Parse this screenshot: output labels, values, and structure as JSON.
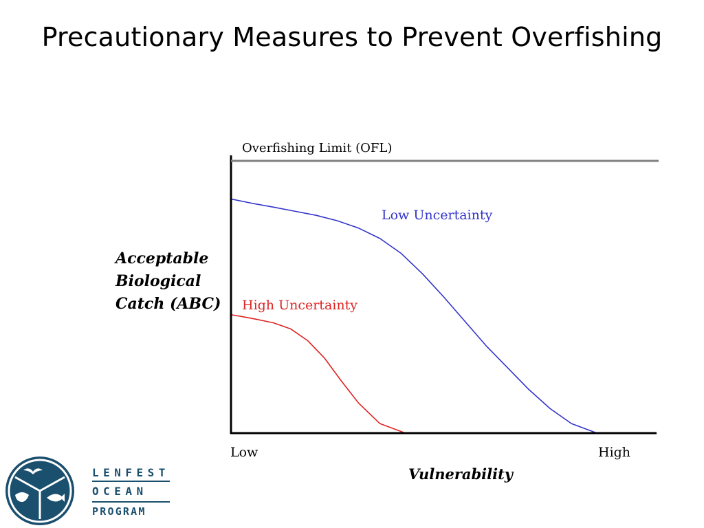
{
  "slide": {
    "title": "Precautionary Measures to Prevent Overfishing"
  },
  "chart_data": {
    "type": "line",
    "title": "",
    "xlabel": "Vulnerability",
    "ylabel_lines": [
      "Acceptable",
      "Biological",
      "Catch (ABC)"
    ],
    "x_ticks": [
      "Low",
      "High"
    ],
    "xlim": [
      0,
      1
    ],
    "ylim": [
      0,
      1
    ],
    "grid": false,
    "reference_line": {
      "name": "Overfishing Limit (OFL)",
      "y": 1.0,
      "color": "#808080"
    },
    "series": [
      {
        "name": "Low Uncertainty",
        "color": "#3333cc",
        "x": [
          0.0,
          0.05,
          0.1,
          0.15,
          0.2,
          0.25,
          0.3,
          0.35,
          0.4,
          0.45,
          0.5,
          0.55,
          0.6,
          0.65,
          0.7,
          0.75,
          0.8,
          0.86
        ],
        "y": [
          0.86,
          0.844,
          0.83,
          0.815,
          0.8,
          0.78,
          0.753,
          0.715,
          0.66,
          0.585,
          0.5,
          0.41,
          0.32,
          0.24,
          0.16,
          0.09,
          0.035,
          0.0
        ]
      },
      {
        "name": "High Uncertainty",
        "color": "#dd2222",
        "x": [
          0.0,
          0.03,
          0.06,
          0.1,
          0.14,
          0.18,
          0.22,
          0.26,
          0.3,
          0.35,
          0.41
        ],
        "y": [
          0.435,
          0.427,
          0.418,
          0.405,
          0.383,
          0.34,
          0.275,
          0.19,
          0.11,
          0.035,
          0.0
        ]
      }
    ]
  },
  "logo": {
    "lines": [
      "LENFEST",
      "OCEAN",
      "PROGRAM"
    ],
    "color": "#1b4f6e"
  }
}
